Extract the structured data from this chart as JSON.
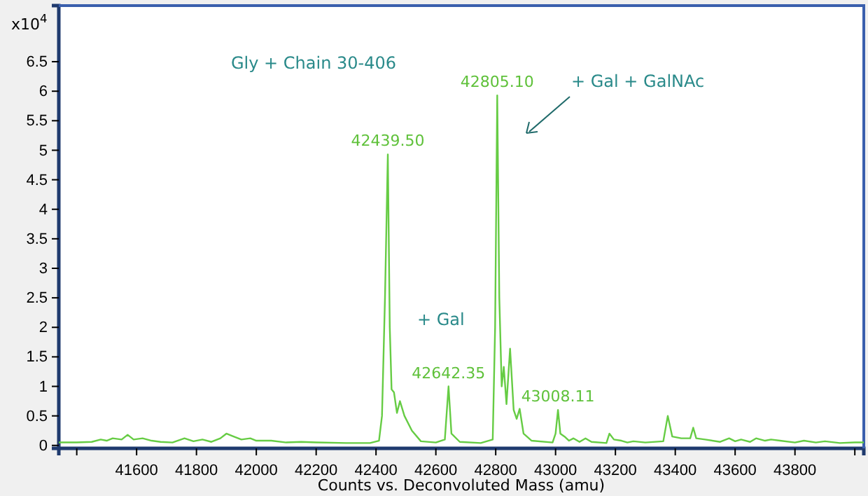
{
  "chart_data": {
    "type": "line",
    "xlabel": "Counts vs. Deconvoluted Mass (amu)",
    "ylabel": "x10$^{4}$",
    "x": [
      41340,
      41400,
      41450,
      41480,
      41500,
      41520,
      41550,
      41570,
      41590,
      41620,
      41650,
      41680,
      41720,
      41760,
      41790,
      41820,
      41850,
      41880,
      41900,
      41920,
      41950,
      41980,
      42000,
      42050,
      42100,
      42150,
      42200,
      42300,
      42380,
      42410,
      42420,
      42430,
      42439.5,
      42446,
      42452,
      42460,
      42470,
      42480,
      42495,
      42520,
      42550,
      42600,
      42630,
      42642.35,
      42652,
      42680,
      42750,
      42790,
      42798,
      42805.1,
      42812,
      42820,
      42827,
      42836,
      42848,
      42860,
      42870,
      42880,
      42893,
      42920,
      42990,
      43000,
      43008.11,
      43016,
      43030,
      43045,
      43060,
      43080,
      43100,
      43120,
      43170,
      43180,
      43195,
      43220,
      43240,
      43260,
      43300,
      43360,
      43375,
      43390,
      43420,
      43450,
      43460,
      43470,
      43500,
      43550,
      43580,
      43600,
      43620,
      43650,
      43670,
      43700,
      43720,
      43750,
      43800,
      43830,
      43870,
      43900,
      43950,
      44000,
      44030
    ],
    "series": [
      {
        "color": "#66cc44",
        "values": [
          0.05,
          0.05,
          0.06,
          0.1,
          0.08,
          0.12,
          0.1,
          0.18,
          0.1,
          0.12,
          0.08,
          0.06,
          0.05,
          0.12,
          0.07,
          0.1,
          0.06,
          0.12,
          0.2,
          0.16,
          0.1,
          0.12,
          0.08,
          0.08,
          0.05,
          0.06,
          0.05,
          0.04,
          0.04,
          0.08,
          0.5,
          2.5,
          4.93,
          2.0,
          0.95,
          0.9,
          0.55,
          0.75,
          0.5,
          0.25,
          0.07,
          0.05,
          0.1,
          1.0,
          0.2,
          0.06,
          0.04,
          0.1,
          2.0,
          5.93,
          2.5,
          1.0,
          1.33,
          0.7,
          1.64,
          0.6,
          0.45,
          0.62,
          0.2,
          0.08,
          0.05,
          0.2,
          0.6,
          0.2,
          0.15,
          0.08,
          0.12,
          0.06,
          0.12,
          0.06,
          0.04,
          0.2,
          0.1,
          0.08,
          0.05,
          0.07,
          0.05,
          0.07,
          0.5,
          0.15,
          0.12,
          0.12,
          0.3,
          0.12,
          0.1,
          0.06,
          0.12,
          0.07,
          0.1,
          0.06,
          0.12,
          0.08,
          0.1,
          0.08,
          0.05,
          0.08,
          0.05,
          0.07,
          0.04,
          0.05,
          0.05
        ]
      }
    ],
    "xlim": [
      41340,
      44030
    ],
    "xticks": [
      {
        "value": 41400,
        "label": null
      },
      41600,
      41800,
      42000,
      42200,
      42400,
      42600,
      42800,
      43000,
      43200,
      43400,
      43600,
      43800,
      {
        "value": 44000,
        "label": null
      }
    ],
    "ylim": [
      -0.05,
      7.45
    ],
    "yticks": [
      0,
      0.5,
      1,
      1.5,
      2,
      2.5,
      3,
      3.5,
      4,
      4.5,
      5,
      5.5,
      6,
      6.5
    ],
    "grid": false,
    "marker": "none",
    "line_style": "solid",
    "annotations": [
      {
        "text": "42439.50",
        "x": 42439.5,
        "y": 4.93
      },
      {
        "text": "42805.10",
        "x": 42805.1,
        "y": 5.93
      },
      {
        "text": "42642.35",
        "x": 42642.35,
        "y": 1.0
      },
      {
        "text": "43008.11",
        "x": 43008.11,
        "y": 0.6
      },
      "Gly + Chain 30-406",
      "+ Gal",
      "+ Gal + GalNAc"
    ]
  }
}
